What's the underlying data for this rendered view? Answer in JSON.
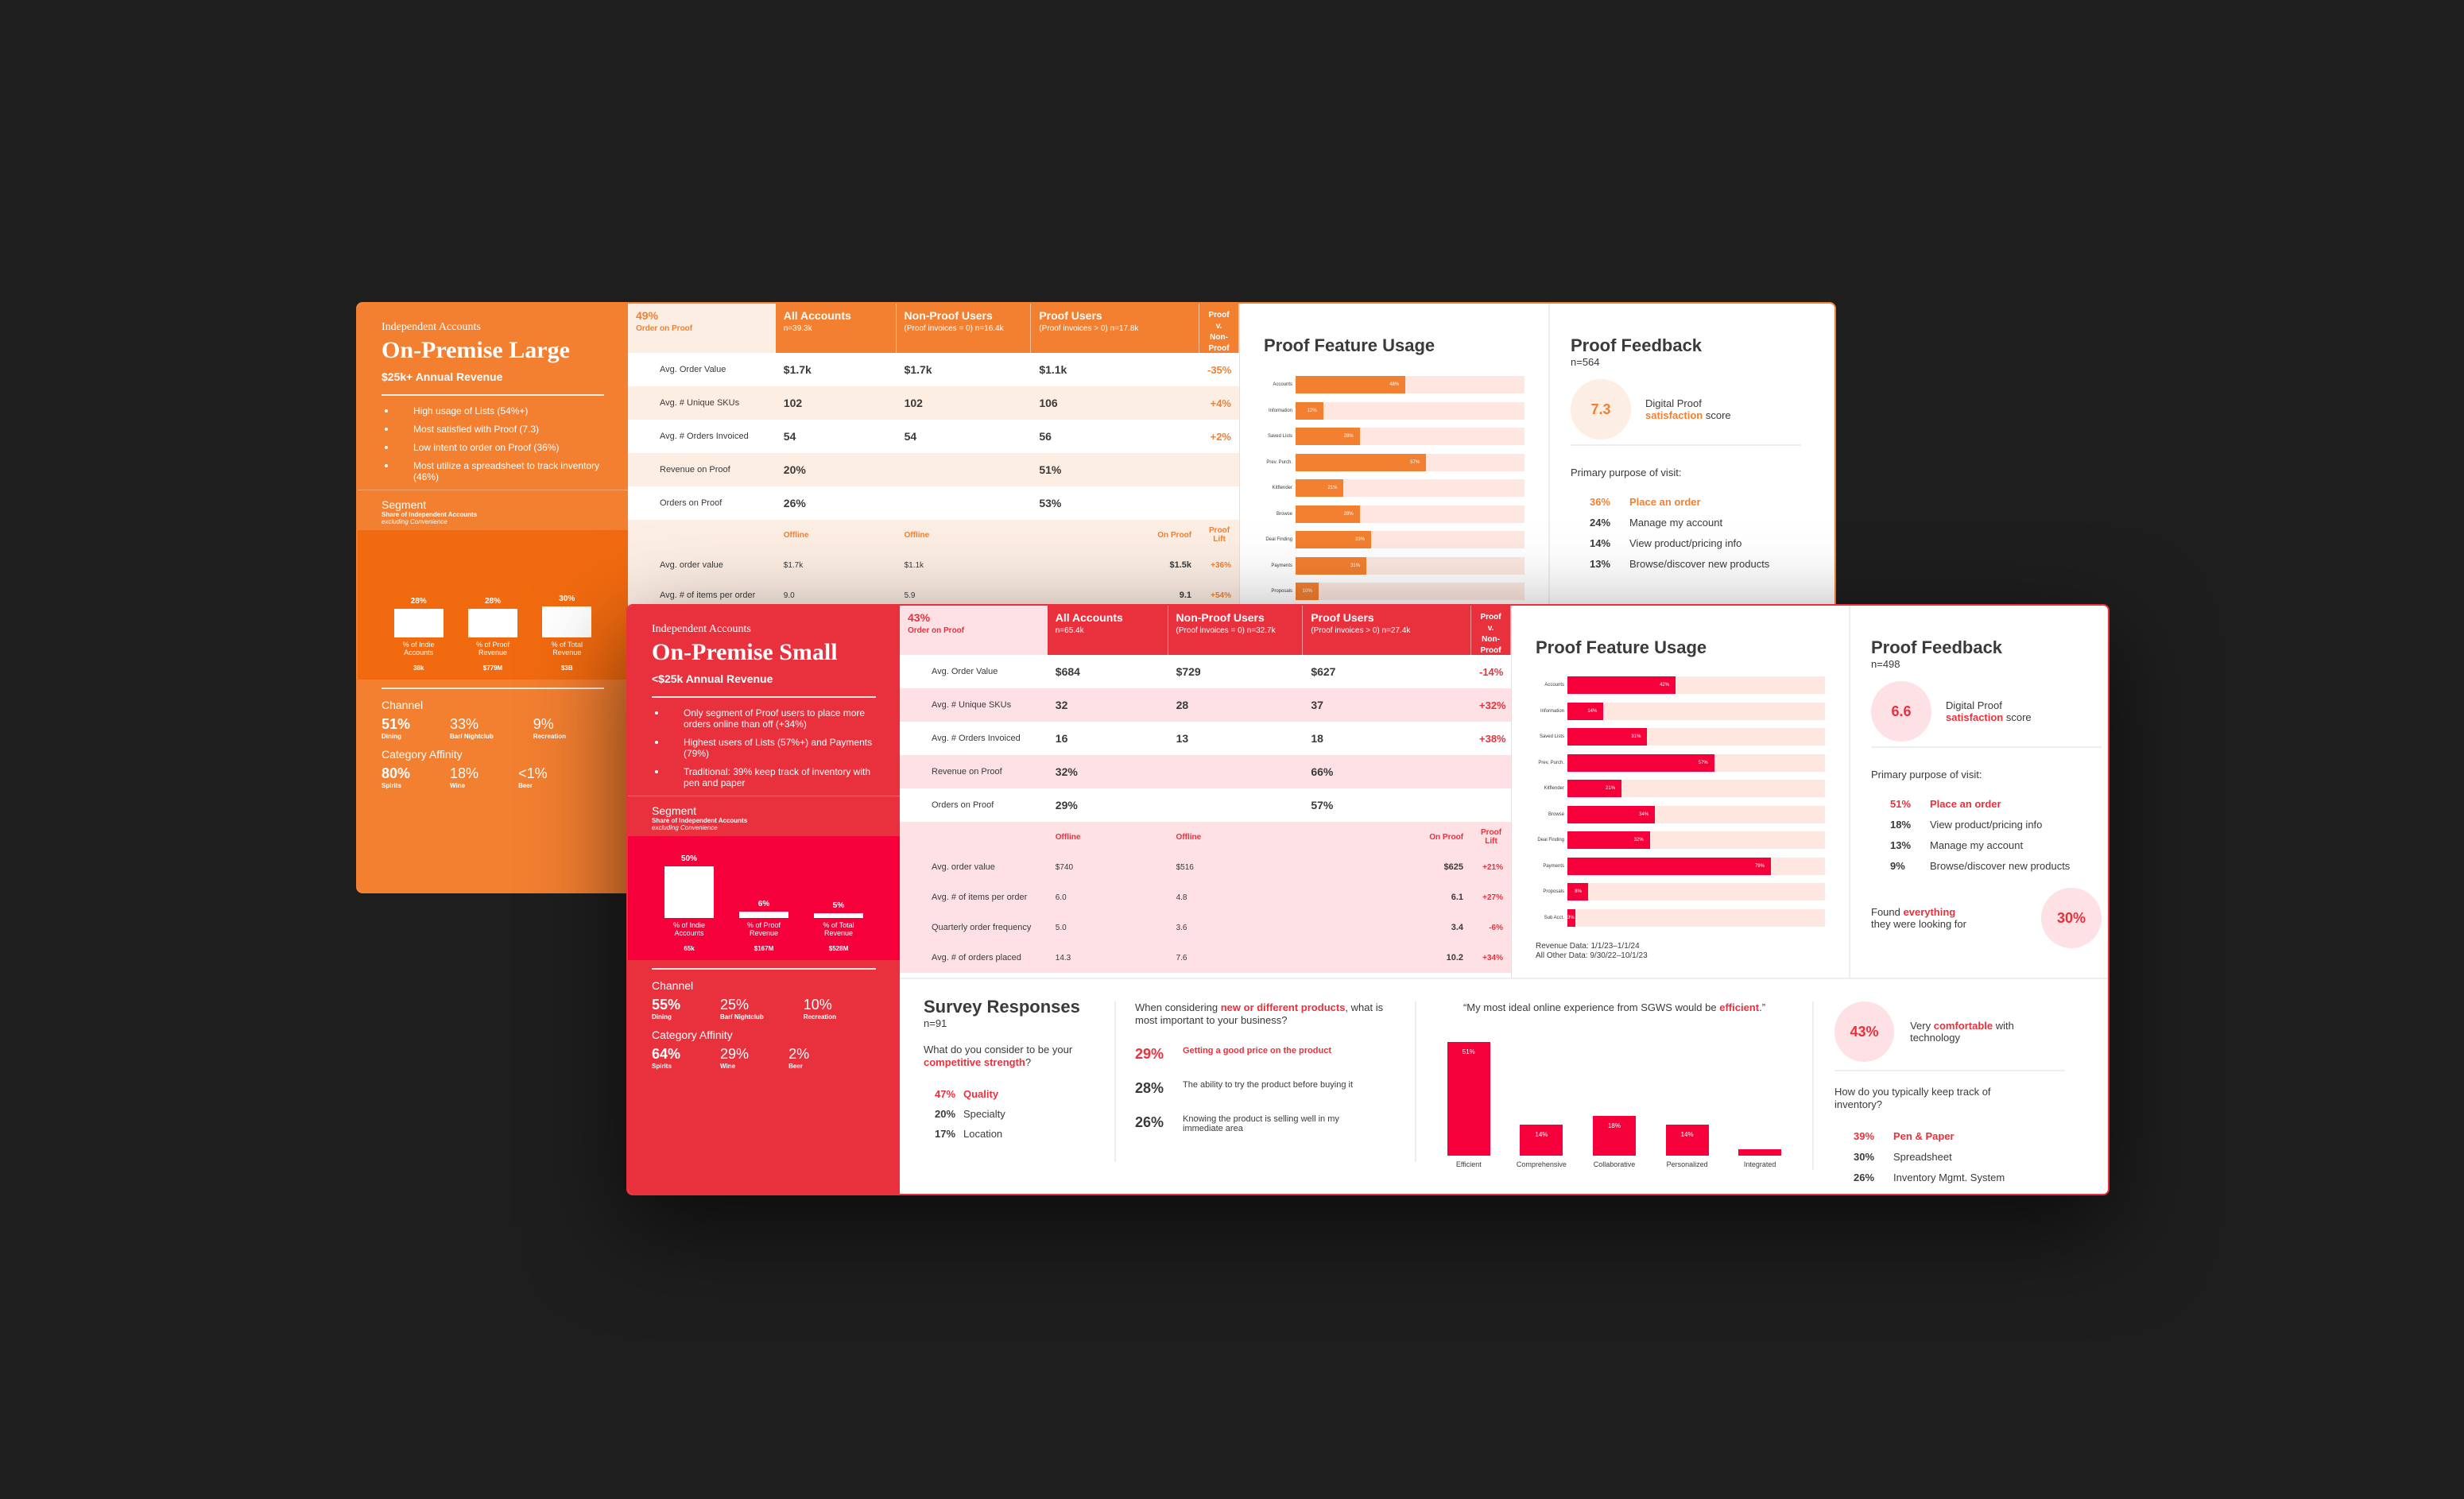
{
  "colors": {
    "large": "#f37f30",
    "large_dark": "#f16a0f",
    "small": "#e9313d",
    "small_bright": "#f5003a",
    "small_light": "#fde1e4",
    "large_light": "#fdeee3"
  },
  "large": {
    "kicker": "Independent Accounts",
    "title": "On-Premise Large",
    "revenue": "$25k+  Annual Revenue",
    "bullets": [
      "High usage of Lists (54%+)",
      "Most satisfied with Proof (7.3)",
      "Low intent to order on Proof (36%)",
      "Most utilize a spreadsheet to track inventory (46%)"
    ],
    "segment": {
      "heading": "Segment",
      "sub": "Share of Independent Accounts",
      "sub2": "excluding Convenience",
      "items": [
        {
          "pct": "28%",
          "value": 0.28,
          "label": "% of Indie Accounts",
          "amount": "38k"
        },
        {
          "pct": "28%",
          "value": 0.28,
          "label": "% of Proof Revenue",
          "amount": "$779M"
        },
        {
          "pct": "30%",
          "value": 0.3,
          "label": "% of Total Revenue",
          "amount": "$3B"
        }
      ]
    },
    "channel": {
      "heading": "Channel",
      "items": [
        {
          "v": "51%",
          "n": "Dining"
        },
        {
          "v": "33%",
          "n": "Bar/ Nightclub"
        },
        {
          "v": "9%",
          "n": "Recreation"
        }
      ]
    },
    "affinity": {
      "heading": "Category Affinity",
      "items": [
        {
          "v": "80%",
          "n": "Spirits"
        },
        {
          "v": "18%",
          "n": "Wine"
        },
        {
          "v": "<1%",
          "n": "Beer"
        }
      ]
    },
    "table": {
      "h0": "49%",
      "h0s": "Order on Proof",
      "h1": "All Accounts",
      "h1s": "n=39.3k",
      "h2": "Non-Proof Users",
      "h2s": "(Proof invoices = 0) n=16.4k",
      "h3": "Proof Users",
      "h3s": "(Proof invoices > 0) n=17.8k",
      "h4": "Proof v. Non-Proof",
      "rows": [
        {
          "m": "Avg. Order Value",
          "a": "$1.7k",
          "b": "$1.7k",
          "c": "$1.1k",
          "d": "-35%"
        },
        {
          "m": "Avg. # Unique SKUs",
          "a": "102",
          "b": "102",
          "c": "106",
          "d": "+4%"
        },
        {
          "m": "Avg. # Orders Invoiced",
          "a": "54",
          "b": "54",
          "c": "56",
          "d": "+2%"
        },
        {
          "m": "Revenue on Proof",
          "a": "20%",
          "b": "",
          "c": "51%",
          "d": ""
        },
        {
          "m": "Orders on Proof",
          "a": "26%",
          "b": "",
          "c": "53%",
          "d": ""
        }
      ],
      "subheads": [
        "Offline",
        "Offline",
        "On Proof",
        "Proof Lift"
      ],
      "rows2": [
        {
          "m": "Avg. order value",
          "a": "$1.7k",
          "b": "$1.1k",
          "c": "$1.5k",
          "d": "+36%"
        },
        {
          "m": "Avg. # of items per order",
          "a": "9.0",
          "b": "5.9",
          "c": "9.1",
          "d": "+54%"
        }
      ]
    },
    "features": {
      "title": "Proof Feature Usage",
      "items": [
        {
          "l": "Accounts",
          "v": 0.48,
          "t": "48%"
        },
        {
          "l": "Information",
          "v": 0.12,
          "t": "12%"
        },
        {
          "l": "Saved Lists",
          "v": 0.28,
          "t": "28%"
        },
        {
          "l": "Prev. Purch.",
          "v": 0.57,
          "t": "57%"
        },
        {
          "l": "Kitflender",
          "v": 0.21,
          "t": "21%"
        },
        {
          "l": "Browse",
          "v": 0.28,
          "t": "28%"
        },
        {
          "l": "Deal Finding",
          "v": 0.33,
          "t": "33%"
        },
        {
          "l": "Payments",
          "v": 0.31,
          "t": "31%"
        },
        {
          "l": "Proposals",
          "v": 0.1,
          "t": "10%"
        }
      ]
    },
    "feedback": {
      "title": "Proof Feedback",
      "n": "n=564",
      "score": "7.3",
      "s1": "Digital Proof",
      "s2": "satisfaction",
      "s3": "score",
      "purpose": "Primary purpose of visit:",
      "items": [
        {
          "p": "36%",
          "t": "Place an order",
          "hl": true
        },
        {
          "p": "24%",
          "t": "Manage my account"
        },
        {
          "p": "14%",
          "t": "View product/pricing info"
        },
        {
          "p": "13%",
          "t": "Browse/discover new products"
        }
      ]
    }
  },
  "small": {
    "kicker": "Independent Accounts",
    "title": "On-Premise Small",
    "revenue": "<$25k  Annual Revenue",
    "bullets": [
      "Only segment of Proof users to place more orders online than off (+34%)",
      "Highest users of Lists (57%+) and Payments (79%)",
      "Traditional: 39% keep track of inventory with pen and paper"
    ],
    "segment": {
      "heading": "Segment",
      "sub": "Share of Independent Accounts",
      "sub2": "excluding Convenience",
      "items": [
        {
          "pct": "50%",
          "value": 0.5,
          "label": "% of Indie Accounts",
          "amount": "65k"
        },
        {
          "pct": "6%",
          "value": 0.06,
          "label": "% of Proof Revenue",
          "amount": "$167M"
        },
        {
          "pct": "5%",
          "value": 0.05,
          "label": "% of Total Revenue",
          "amount": "$528M"
        }
      ]
    },
    "channel": {
      "heading": "Channel",
      "items": [
        {
          "v": "55%",
          "n": "Dining"
        },
        {
          "v": "25%",
          "n": "Bar/ Nightclub"
        },
        {
          "v": "10%",
          "n": "Recreation"
        }
      ]
    },
    "affinity": {
      "heading": "Category Affinity",
      "items": [
        {
          "v": "64%",
          "n": "Spirits"
        },
        {
          "v": "29%",
          "n": "Wine"
        },
        {
          "v": "2%",
          "n": "Beer"
        }
      ]
    },
    "table": {
      "h0": "43%",
      "h0s": "Order on Proof",
      "h1": "All Accounts",
      "h1s": "n=65.4k",
      "h2": "Non-Proof Users",
      "h2s": "(Proof invoices = 0) n=32.7k",
      "h3": "Proof Users",
      "h3s": "(Proof invoices > 0) n=27.4k",
      "h4": "Proof v. Non-Proof",
      "rows": [
        {
          "m": "Avg. Order Value",
          "a": "$684",
          "b": "$729",
          "c": "$627",
          "d": "-14%"
        },
        {
          "m": "Avg. # Unique SKUs",
          "a": "32",
          "b": "28",
          "c": "37",
          "d": "+32%"
        },
        {
          "m": "Avg. # Orders Invoiced",
          "a": "16",
          "b": "13",
          "c": "18",
          "d": "+38%"
        },
        {
          "m": "Revenue on Proof",
          "a": "32%",
          "b": "",
          "c": "66%",
          "d": ""
        },
        {
          "m": "Orders on Proof",
          "a": "29%",
          "b": "",
          "c": "57%",
          "d": ""
        }
      ],
      "subheads": [
        "Offline",
        "Offline",
        "On Proof",
        "Proof Lift"
      ],
      "rows2": [
        {
          "m": "Avg. order value",
          "a": "$740",
          "b": "$516",
          "c": "$625",
          "d": "+21%"
        },
        {
          "m": "Avg. # of items per order",
          "a": "6.0",
          "b": "4.8",
          "c": "6.1",
          "d": "+27%"
        },
        {
          "m": "Quarterly order frequency",
          "a": "5.0",
          "b": "3.6",
          "c": "3.4",
          "d": "-6%"
        },
        {
          "m": "Avg. # of orders placed",
          "a": "14.3",
          "b": "7.6",
          "c": "10.2",
          "d": "+34%"
        }
      ]
    },
    "features": {
      "title": "Proof Feature Usage",
      "items": [
        {
          "l": "Accounts",
          "v": 0.42,
          "t": "42%"
        },
        {
          "l": "Information",
          "v": 0.14,
          "t": "14%"
        },
        {
          "l": "Saved Lists",
          "v": 0.31,
          "t": "31%"
        },
        {
          "l": "Prev. Purch.",
          "v": 0.57,
          "t": "57%"
        },
        {
          "l": "Kitflender",
          "v": 0.21,
          "t": "21%"
        },
        {
          "l": "Browse",
          "v": 0.34,
          "t": "34%"
        },
        {
          "l": "Deal Finding",
          "v": 0.32,
          "t": "32%"
        },
        {
          "l": "Payments",
          "v": 0.79,
          "t": "79%"
        },
        {
          "l": "Proposals",
          "v": 0.08,
          "t": "8%"
        },
        {
          "l": "Sub Acct.",
          "v": 0.03,
          "t": "3%"
        }
      ],
      "foot1": "Revenue Data: 1/1/23–1/1/24",
      "foot2": "All Other Data: 9/30/22–10/1/23"
    },
    "feedback": {
      "title": "Proof Feedback",
      "n": "n=498",
      "score": "6.6",
      "s1": "Digital Proof",
      "s2": "satisfaction",
      "s3": "score",
      "purpose": "Primary purpose of visit:",
      "items": [
        {
          "p": "51%",
          "t": "Place an order",
          "hl": true
        },
        {
          "p": "18%",
          "t": "View product/pricing info"
        },
        {
          "p": "13%",
          "t": "Manage my account"
        },
        {
          "p": "9%",
          "t": "Browse/discover new products"
        }
      ],
      "found1": "Found",
      "found2": "everything",
      "found3": "they were looking for",
      "found_pct": "30%"
    },
    "survey": {
      "title": "Survey Responses",
      "n": "n=91",
      "q1a": "What do you consider to be your",
      "q1b": "competitive strength",
      "q1c": "?",
      "a1": [
        {
          "p": "47%",
          "t": "Quality",
          "hl": true
        },
        {
          "p": "20%",
          "t": "Specialty"
        },
        {
          "p": "17%",
          "t": "Location"
        }
      ],
      "q2a": "When considering",
      "q2b": "new or different products",
      "q2c": ", what is most important to your business?",
      "a2": [
        {
          "p": "29%",
          "t": "Getting a good price on the product",
          "hl": true
        },
        {
          "p": "28%",
          "t": "The ability to try the product before buying it"
        },
        {
          "p": "26%",
          "t": "Knowing the product is selling well in my immediate area"
        }
      ],
      "q3a": "“My most ideal online experience from SGWS would be",
      "q3b": "efficient",
      "bars": [
        {
          "l": "Efficient",
          "v": 0.51,
          "t": "51%"
        },
        {
          "l": "Comprehensive",
          "v": 0.14,
          "t": "14%"
        },
        {
          "l": "Collaborative",
          "v": 0.18,
          "t": "18%"
        },
        {
          "l": "Personalized",
          "v": 0.14,
          "t": "14%"
        },
        {
          "l": "Integrated",
          "v": 0.03,
          "t": "3%"
        }
      ],
      "tech_pct": "43%",
      "tech1": "Very",
      "tech2": "comfortable",
      "tech3": "with technology",
      "inv_q": "How do you typically keep track of inventory?",
      "a4": [
        {
          "p": "39%",
          "t": "Pen & Paper",
          "hl": true
        },
        {
          "p": "30%",
          "t": "Spreadsheet"
        },
        {
          "p": "26%",
          "t": "Inventory Mgmt. System"
        }
      ]
    }
  }
}
